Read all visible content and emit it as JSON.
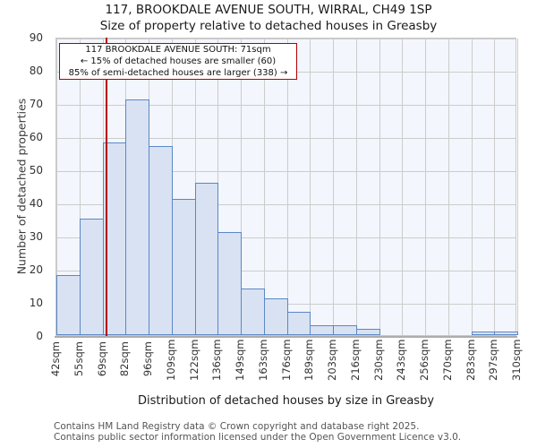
{
  "annotation": {
    "line1": "117 BROOKDALE AVENUE SOUTH: 71sqm",
    "line2": "← 15% of detached houses are smaller (60)",
    "line3": "85% of semi-detached houses are larger (338) →"
  },
  "footer": {
    "line1": "Contains HM Land Registry data © Crown copyright and database right 2025.",
    "line2": "Contains public sector information licensed under the Open Government Licence v3.0."
  },
  "chart_data": {
    "type": "bar",
    "title": "117, BROOKDALE AVENUE SOUTH, WIRRAL, CH49 1SP",
    "subtitle": "Size of property relative to detached houses in Greasby",
    "xlabel": "Distribution of detached houses by size in Greasby",
    "ylabel": "Number of detached properties",
    "ylim": [
      0,
      90
    ],
    "y_ticks": [
      0,
      10,
      20,
      30,
      40,
      50,
      60,
      70,
      80,
      90
    ],
    "grid": true,
    "bin_edges_sqm": [
      42,
      55,
      69,
      82,
      96,
      109,
      122,
      136,
      149,
      163,
      176,
      189,
      203,
      216,
      230,
      243,
      256,
      270,
      283,
      297,
      310
    ],
    "x_tick_labels": [
      "42sqm",
      "55sqm",
      "69sqm",
      "82sqm",
      "96sqm",
      "109sqm",
      "122sqm",
      "136sqm",
      "149sqm",
      "163sqm",
      "176sqm",
      "189sqm",
      "203sqm",
      "216sqm",
      "230sqm",
      "243sqm",
      "256sqm",
      "270sqm",
      "283sqm",
      "297sqm",
      "310sqm"
    ],
    "values": [
      18,
      35,
      58,
      71,
      57,
      41,
      46,
      31,
      14,
      11,
      7,
      3,
      3,
      2,
      0,
      0,
      0,
      0,
      1,
      1
    ],
    "marker": {
      "value_sqm": 71
    },
    "colors": {
      "bar_fill": "#d8e2f3",
      "bar_border": "#5b87c5",
      "marker_line": "#b40000",
      "annotation_border": "#b40000",
      "plot_bg": "#f3f6fc",
      "grid_line": "#cccccc"
    }
  }
}
